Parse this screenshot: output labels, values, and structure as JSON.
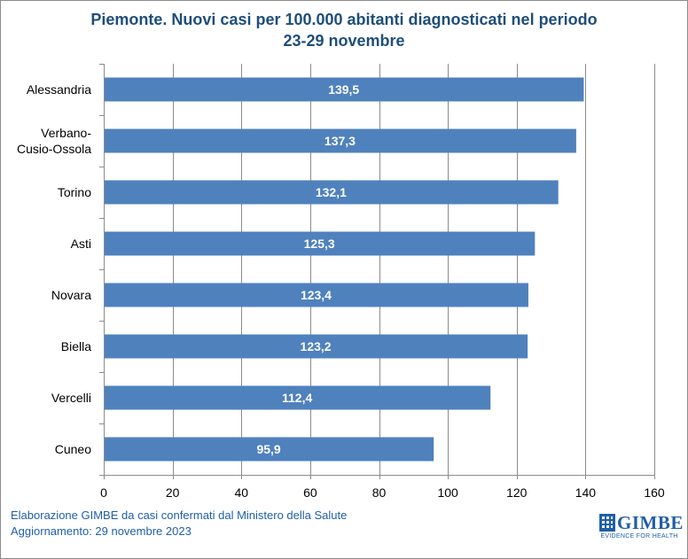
{
  "title": {
    "line1": "Piemonte. Nuovi casi per 100.000 abitanti diagnosticati nel periodo",
    "line2": "23-29 novembre"
  },
  "footer": {
    "line1": "Elaborazione GIMBE da casi confermati dal Ministero della Salute",
    "line2": "Aggiornamento: 29 novembre 2023"
  },
  "logo": {
    "name": "GIMBE",
    "tagline": "EVIDENCE FOR HEALTH"
  },
  "colors": {
    "bar": "#4f81bd",
    "title": "#1f4e79",
    "footer": "#1f5fa8",
    "grid": "#8c8c8c"
  },
  "chart_data": {
    "type": "bar",
    "orientation": "horizontal",
    "categories": [
      "Alessandria",
      "Verbano-\nCusio-Ossola",
      "Torino",
      "Asti",
      "Novara",
      "Biella",
      "Vercelli",
      "Cuneo"
    ],
    "values": [
      139.5,
      137.3,
      132.1,
      125.3,
      123.4,
      123.2,
      112.4,
      95.9
    ],
    "data_labels": [
      "139,5",
      "137,3",
      "132,1",
      "125,3",
      "123,4",
      "123,2",
      "112,4",
      "95,9"
    ],
    "xlim": [
      0,
      160
    ],
    "xticks": [
      0,
      20,
      40,
      60,
      80,
      100,
      120,
      140,
      160
    ],
    "grid": true,
    "legend": "none"
  }
}
